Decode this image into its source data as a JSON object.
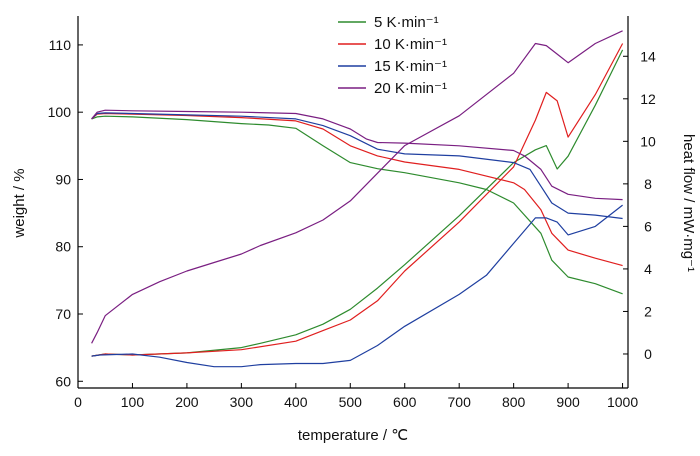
{
  "chart_data": {
    "type": "line",
    "xlabel": "temperature / ℃",
    "ylabel_left": "weight / %",
    "ylabel_right": "heat flow / mW·mg⁻¹",
    "xlim": [
      0,
      1010
    ],
    "ylim_left": [
      59,
      114
    ],
    "ylim_right": [
      -1.6,
      15.8
    ],
    "x_ticks": [
      "0",
      "100",
      "200",
      "300",
      "400",
      "500",
      "600",
      "700",
      "800",
      "900",
      "1000"
    ],
    "y_left_ticks": [
      "60",
      "70",
      "80",
      "90",
      "100",
      "110"
    ],
    "y_right_ticks": [
      "0",
      "2",
      "4",
      "6",
      "8",
      "10",
      "12",
      "14"
    ],
    "grid": false,
    "legend_position": "top-center",
    "legend": [
      "5 K·min⁻¹",
      "10 K·min⁻¹",
      "15 K·min⁻¹",
      "20 K·min⁻¹"
    ],
    "series": [
      {
        "name": "5 K·min⁻¹",
        "color": "#2e8b2e",
        "weight": {
          "x": [
            25,
            35,
            50,
            100,
            200,
            300,
            350,
            400,
            450,
            500,
            550,
            600,
            700,
            750,
            800,
            850,
            870,
            900,
            950,
            1000
          ],
          "y": [
            99,
            99.3,
            99.4,
            99.3,
            98.9,
            98.3,
            98.1,
            97.6,
            95,
            92.5,
            91.6,
            91,
            89.5,
            88.5,
            86.5,
            82,
            78,
            75.5,
            74.5,
            73
          ]
        },
        "heat_flow": {
          "x": [
            25,
            50,
            100,
            200,
            300,
            335,
            400,
            450,
            500,
            550,
            600,
            700,
            800,
            840,
            860,
            880,
            900,
            950,
            1000
          ],
          "y": [
            -0.1,
            0,
            -0.05,
            0.05,
            0.3,
            0.5,
            0.9,
            1.4,
            2.1,
            3.1,
            4.2,
            6.5,
            9,
            9.6,
            9.8,
            8.7,
            9.3,
            11.7,
            14.3
          ]
        }
      },
      {
        "name": "10 K·min⁻¹",
        "color": "#e01f1f",
        "weight": {
          "x": [
            25,
            35,
            50,
            100,
            200,
            300,
            400,
            450,
            500,
            550,
            600,
            700,
            800,
            820,
            850,
            870,
            900,
            950,
            1000
          ],
          "y": [
            99,
            99.7,
            99.8,
            99.7,
            99.5,
            99.2,
            98.7,
            97.5,
            95,
            93.5,
            92.6,
            91.5,
            89.5,
            88.5,
            85.5,
            82,
            79.5,
            78.3,
            77.2
          ]
        },
        "heat_flow": {
          "x": [
            25,
            50,
            100,
            200,
            300,
            400,
            450,
            500,
            550,
            600,
            700,
            800,
            840,
            860,
            880,
            900,
            950,
            1000
          ],
          "y": [
            -0.1,
            0,
            -0.05,
            0.05,
            0.2,
            0.6,
            1.1,
            1.6,
            2.5,
            3.9,
            6.2,
            8.8,
            11,
            12.3,
            11.9,
            10.2,
            12.2,
            14.6
          ]
        }
      },
      {
        "name": "15 K·min⁻¹",
        "color": "#1f3fa0",
        "weight": {
          "x": [
            25,
            35,
            50,
            100,
            200,
            300,
            400,
            450,
            500,
            550,
            600,
            700,
            800,
            830,
            850,
            870,
            900,
            950,
            1000
          ],
          "y": [
            99,
            99.8,
            99.9,
            99.8,
            99.6,
            99.4,
            99,
            98,
            96.5,
            94.5,
            93.8,
            93.5,
            92.5,
            91.5,
            89,
            86.5,
            85,
            84.7,
            84.2
          ]
        },
        "heat_flow": {
          "x": [
            25,
            40,
            100,
            150,
            200,
            250,
            300,
            335,
            400,
            450,
            500,
            550,
            600,
            700,
            750,
            800,
            840,
            860,
            880,
            900,
            950,
            1000
          ],
          "y": [
            -0.1,
            -0.05,
            0,
            -0.15,
            -0.4,
            -0.6,
            -0.6,
            -0.5,
            -0.45,
            -0.45,
            -0.3,
            0.4,
            1.3,
            2.8,
            3.7,
            5.2,
            6.4,
            6.4,
            6.2,
            5.6,
            6,
            7
          ]
        }
      },
      {
        "name": "20 K·min⁻¹",
        "color": "#7a1f82",
        "weight": {
          "x": [
            25,
            35,
            50,
            100,
            200,
            300,
            400,
            450,
            500,
            530,
            550,
            600,
            700,
            800,
            820,
            850,
            870,
            900,
            950,
            1000
          ],
          "y": [
            99,
            100,
            100.3,
            100.2,
            100.1,
            100,
            99.8,
            99,
            97.5,
            96,
            95.5,
            95.4,
            95,
            94.3,
            93.5,
            91.5,
            89,
            87.8,
            87.2,
            87
          ]
        },
        "heat_flow": {
          "x": [
            25,
            35,
            50,
            100,
            150,
            200,
            250,
            300,
            335,
            400,
            450,
            500,
            550,
            600,
            700,
            800,
            840,
            860,
            880,
            900,
            950,
            1000
          ],
          "y": [
            0.5,
            1,
            1.8,
            2.8,
            3.4,
            3.9,
            4.3,
            4.7,
            5.1,
            5.7,
            6.3,
            7.2,
            8.5,
            9.8,
            11.2,
            13.2,
            14.6,
            14.5,
            14.1,
            13.7,
            14.6,
            15.2
          ]
        }
      }
    ]
  }
}
